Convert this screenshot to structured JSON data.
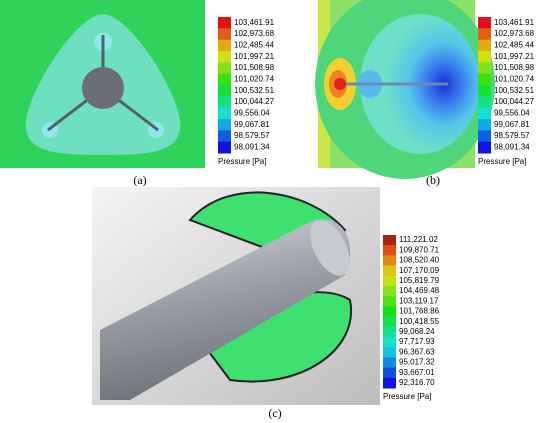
{
  "panels": [
    {
      "caption": "(a)",
      "legend_title": "Pressure [Pa]",
      "legend_labels": [
        "103,461.91",
        "102,973.68",
        "102,485.44",
        "101,997.21",
        "101,508.98",
        "101,020.74",
        "100,532.51",
        "100,044.27",
        "99,556.04",
        "99,067.81",
        "98,579.57",
        "98,091.34"
      ]
    },
    {
      "caption": "(b)",
      "legend_title": "Pressure [Pa]",
      "legend_labels": [
        "103,461.91",
        "102,973.68",
        "102,485.44",
        "101,997.21",
        "101,508.98",
        "101,020.74",
        "100,532.51",
        "100,044.27",
        "99,556.04",
        "99,067.81",
        "98,579.57",
        "98,091.34"
      ]
    },
    {
      "caption": "(c)",
      "legend_title": "Pressure [Pa]",
      "legend_labels": [
        "111,221.02",
        "109,870.71",
        "108,520.40",
        "107,170.09",
        "105,819.79",
        "104,469.48",
        "103,119.17",
        "101,768.86",
        "100,418.55",
        "99,068.24",
        "97,717.93",
        "96,367.63",
        "95,017.32",
        "93,667.01",
        "92,316.70"
      ]
    }
  ]
}
